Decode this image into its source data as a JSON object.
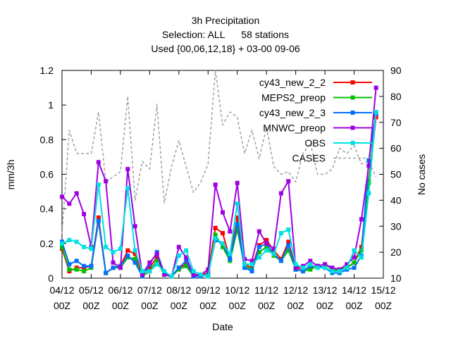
{
  "chart_data": {
    "type": "line",
    "title_lines": [
      "3h Precipitation",
      "Selection: ALL      58 stations",
      "Used {00,06,12,18} + 03-00 09-06"
    ],
    "xlabel": "Date",
    "ylabel": "mm/3h",
    "y2label": "No cases",
    "ylim": [
      0,
      1.2
    ],
    "y2lim": [
      10,
      90
    ],
    "xlim": [
      0,
      44
    ],
    "y_ticks": [
      0,
      0.2,
      0.4,
      0.6,
      0.8,
      1.0,
      1.2
    ],
    "y_tick_labels": [
      "0",
      "0.2",
      "0.4",
      "0.6",
      "0.8",
      "1",
      "1.2"
    ],
    "y2_ticks": [
      10,
      20,
      30,
      40,
      50,
      60,
      70,
      80,
      90
    ],
    "x_ticks": [
      0,
      4,
      8,
      12,
      16,
      20,
      24,
      28,
      32,
      36,
      40,
      44
    ],
    "x_tick_labels": [
      [
        "04/12",
        "00Z"
      ],
      [
        "05/12",
        "00Z"
      ],
      [
        "06/12",
        "00Z"
      ],
      [
        "07/12",
        "00Z"
      ],
      [
        "08/12",
        "00Z"
      ],
      [
        "09/12",
        "00Z"
      ],
      [
        "10/12",
        "00Z"
      ],
      [
        "11/12",
        "00Z"
      ],
      [
        "12/12",
        "00Z"
      ],
      [
        "13/12",
        "00Z"
      ],
      [
        "14/12",
        "00Z"
      ],
      [
        "15/12",
        "00Z"
      ]
    ],
    "grid": false,
    "legend_position": "top-right",
    "x": [
      0,
      1,
      2,
      3,
      4,
      5,
      6,
      7,
      8,
      9,
      10,
      11,
      12,
      13,
      14,
      15,
      16,
      17,
      18,
      19,
      20,
      21,
      22,
      23,
      24,
      25,
      26,
      27,
      28,
      29,
      30,
      31,
      32,
      33,
      34,
      35,
      36,
      37,
      38,
      39,
      40,
      41,
      42,
      43
    ],
    "series": [
      {
        "name": "cy43_new_2_2",
        "color": "#ff0000",
        "marker": "square",
        "axis": "y",
        "values": [
          0.17,
          0.04,
          0.06,
          0.06,
          0.07,
          0.35,
          0.03,
          0.06,
          0.07,
          0.16,
          0.14,
          0.02,
          0.06,
          0.12,
          0.02,
          0.01,
          0.06,
          0.08,
          0.01,
          0.02,
          0.03,
          0.29,
          0.26,
          0.11,
          0.35,
          0.08,
          0.06,
          0.19,
          0.22,
          0.16,
          0.11,
          0.21,
          0.06,
          0.05,
          0.06,
          0.07,
          0.06,
          0.04,
          0.05,
          0.06,
          0.09,
          0.18,
          0.56,
          0.93
        ]
      },
      {
        "name": "MEPS2_preop",
        "color": "#00c000",
        "marker": "square",
        "axis": "y",
        "values": [
          0.18,
          0.05,
          0.05,
          0.04,
          0.06,
          0.33,
          0.03,
          0.06,
          0.06,
          0.12,
          0.11,
          0.01,
          0.04,
          0.1,
          0.02,
          0.01,
          0.05,
          0.07,
          0.01,
          0.01,
          0.02,
          0.25,
          0.18,
          0.1,
          0.28,
          0.07,
          0.05,
          0.15,
          0.18,
          0.13,
          0.1,
          0.16,
          0.05,
          0.04,
          0.05,
          0.07,
          0.08,
          0.05,
          0.05,
          0.06,
          0.09,
          0.16,
          0.55,
          0.96
        ]
      },
      {
        "name": "cy43_new_2_3",
        "color": "#0070ff",
        "marker": "square",
        "axis": "y",
        "values": [
          0.21,
          0.08,
          0.1,
          0.07,
          0.07,
          0.33,
          0.03,
          0.06,
          0.07,
          0.13,
          0.09,
          0.01,
          0.08,
          0.15,
          0.03,
          0.01,
          0.06,
          0.1,
          0.01,
          0.01,
          0.02,
          0.22,
          0.2,
          0.11,
          0.31,
          0.06,
          0.04,
          0.18,
          0.2,
          0.14,
          0.1,
          0.19,
          0.05,
          0.04,
          0.07,
          0.07,
          0.06,
          0.03,
          0.03,
          0.05,
          0.06,
          0.13,
          0.68,
          0.95
        ]
      },
      {
        "name": "MNWC_preop",
        "color": "#a000e0",
        "marker": "square",
        "axis": "y",
        "values": [
          0.47,
          0.43,
          0.49,
          0.37,
          0.18,
          0.67,
          0.56,
          0.09,
          0.06,
          0.63,
          0.3,
          0.02,
          0.09,
          0.14,
          0.02,
          0.01,
          0.18,
          0.12,
          0.02,
          0.02,
          0.05,
          0.54,
          0.38,
          0.27,
          0.55,
          0.11,
          0.1,
          0.27,
          0.2,
          0.17,
          0.49,
          0.56,
          0.06,
          0.07,
          0.1,
          0.07,
          0.08,
          0.06,
          0.05,
          0.08,
          0.12,
          0.34,
          0.65,
          1.1
        ]
      },
      {
        "name": "OBS",
        "color": "#00e0e0",
        "marker": "square",
        "axis": "y",
        "values": [
          0.2,
          0.22,
          0.21,
          0.18,
          0.17,
          0.54,
          0.18,
          0.15,
          0.17,
          0.52,
          0.16,
          0.04,
          0.04,
          0.08,
          0.04,
          0.01,
          0.13,
          0.16,
          0.04,
          0.02,
          0.01,
          0.23,
          0.2,
          0.14,
          0.43,
          0.08,
          0.08,
          0.12,
          0.16,
          0.14,
          0.26,
          0.28,
          0.08,
          0.06,
          0.08,
          0.06,
          0.06,
          0.04,
          0.04,
          0.06,
          0.16,
          0.12,
          0.49,
          0.96
        ]
      },
      {
        "name": "CASES",
        "color": "#a0a0a0",
        "marker": "none",
        "dashed": true,
        "axis": "y2",
        "values": [
          27,
          67,
          58,
          58,
          58,
          74,
          47,
          49,
          51,
          80,
          40,
          55,
          52,
          77,
          39,
          53,
          63,
          53,
          43,
          47,
          54,
          90,
          69,
          74,
          72,
          58,
          67,
          56,
          68,
          53,
          50,
          51,
          47,
          58,
          62,
          50,
          50,
          52,
          60,
          58,
          61,
          54,
          55,
          49
        ]
      }
    ]
  }
}
